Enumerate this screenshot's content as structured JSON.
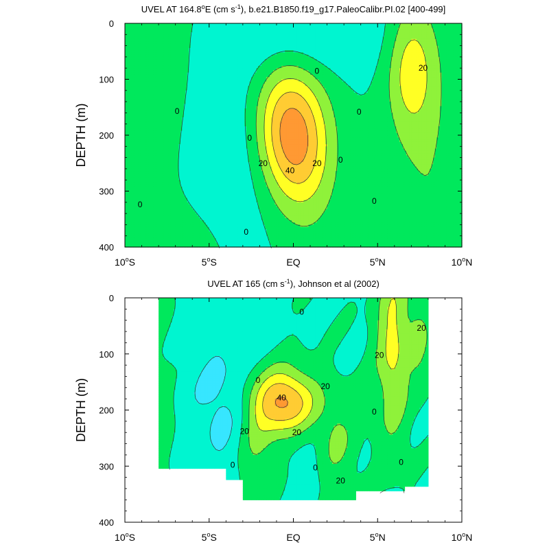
{
  "chart_data": [
    {
      "type": "heatmap",
      "subtype": "filled-contour",
      "title_pre": "UVEL AT 164.8",
      "title_sup1": "o",
      "title_mid": "E (cm s",
      "title_sup2": "-1",
      "title_post": "), b.e21.B1850.f19_g17.PaleoCalibr.PI.02 [400-499]",
      "ylabel": "DEPTH (m)",
      "xlim": [
        -10,
        10
      ],
      "ylim": [
        0,
        400
      ],
      "y_inverted": true,
      "x_ticks": [
        {
          "value": -10,
          "num": "10",
          "sup": "o",
          "hem": "S"
        },
        {
          "value": -5,
          "num": "5",
          "sup": "o",
          "hem": "S"
        },
        {
          "value": 0,
          "num": "EQ",
          "sup": "",
          "hem": ""
        },
        {
          "value": 5,
          "num": "5",
          "sup": "o",
          "hem": "N"
        },
        {
          "value": 10,
          "num": "10",
          "sup": "o",
          "hem": "N"
        }
      ],
      "y_ticks": [
        0,
        100,
        200,
        300,
        400
      ],
      "y_tick_labels": [
        "0",
        "100",
        "200",
        "300",
        "400"
      ],
      "contour_interval": 10,
      "contour_labels": [
        {
          "x": -6.9,
          "y": 157,
          "text": "0"
        },
        {
          "x": -2.6,
          "y": 205,
          "text": "0"
        },
        {
          "x": 1.4,
          "y": 85,
          "text": "0"
        },
        {
          "x": 3.9,
          "y": 158,
          "text": "0"
        },
        {
          "x": 2.8,
          "y": 244,
          "text": "0"
        },
        {
          "x": 4.8,
          "y": 318,
          "text": "0"
        },
        {
          "x": -2.8,
          "y": 373,
          "text": "0"
        },
        {
          "x": -9.1,
          "y": 324,
          "text": "0"
        },
        {
          "x": -1.8,
          "y": 250,
          "text": "20"
        },
        {
          "x": 1.4,
          "y": 250,
          "text": "20"
        },
        {
          "x": 7.7,
          "y": 80,
          "text": "20"
        },
        {
          "x": -0.2,
          "y": 263,
          "text": "40"
        }
      ],
      "colors": {
        "lt_minus10": "#37e6ff",
        "minus10_0": "#00f5d0",
        "0_10": "#00e85c",
        "10_20": "#8ff23a",
        "20_30": "#ffff24",
        "30_40": "#ffcc33",
        "gt_40": "#ff9933",
        "line": "#333333"
      }
    },
    {
      "type": "heatmap",
      "subtype": "filled-contour",
      "title_pre": "UVEL AT 165 (cm s",
      "title_sup1": "-1",
      "title_mid": "), Johnson et al (2002)",
      "title_sup2": "",
      "title_post": "",
      "ylabel": "DEPTH (m)",
      "xlim": [
        -10,
        10
      ],
      "ylim": [
        0,
        400
      ],
      "y_inverted": true,
      "data_extent": {
        "lat": [
          -8,
          8
        ],
        "depth": [
          0,
          360
        ]
      },
      "x_ticks": [
        {
          "value": -10,
          "num": "10",
          "sup": "o",
          "hem": "S"
        },
        {
          "value": -5,
          "num": "5",
          "sup": "o",
          "hem": "S"
        },
        {
          "value": 0,
          "num": "EQ",
          "sup": "",
          "hem": ""
        },
        {
          "value": 5,
          "num": "5",
          "sup": "o",
          "hem": "N"
        },
        {
          "value": 10,
          "num": "10",
          "sup": "o",
          "hem": "N"
        }
      ],
      "y_ticks": [
        0,
        100,
        200,
        300,
        400
      ],
      "y_tick_labels": [
        "0",
        "100",
        "200",
        "300",
        "400"
      ],
      "contour_labels": [
        {
          "x": 0.5,
          "y": 25,
          "text": "0"
        },
        {
          "x": -2.1,
          "y": 147,
          "text": "0"
        },
        {
          "x": 4.8,
          "y": 203,
          "text": "0"
        },
        {
          "x": 6.4,
          "y": 293,
          "text": "0"
        },
        {
          "x": -3.6,
          "y": 298,
          "text": "0"
        },
        {
          "x": 1.3,
          "y": 303,
          "text": "0"
        },
        {
          "x": 1.9,
          "y": 158,
          "text": "20"
        },
        {
          "x": -2.9,
          "y": 238,
          "text": "20"
        },
        {
          "x": 0.2,
          "y": 240,
          "text": "20"
        },
        {
          "x": 2.8,
          "y": 326,
          "text": "20"
        },
        {
          "x": 5.1,
          "y": 102,
          "text": "20"
        },
        {
          "x": 7.6,
          "y": 54,
          "text": "20"
        },
        {
          "x": -0.7,
          "y": 178,
          "text": "40"
        }
      ],
      "colors": {
        "lt_minus10": "#37e6ff",
        "minus10_0": "#00f5d0",
        "0_10": "#00e85c",
        "10_20": "#8ff23a",
        "20_30": "#ffff24",
        "30_40": "#ffcc33",
        "gt_40": "#ff9933",
        "line": "#333333"
      }
    }
  ]
}
